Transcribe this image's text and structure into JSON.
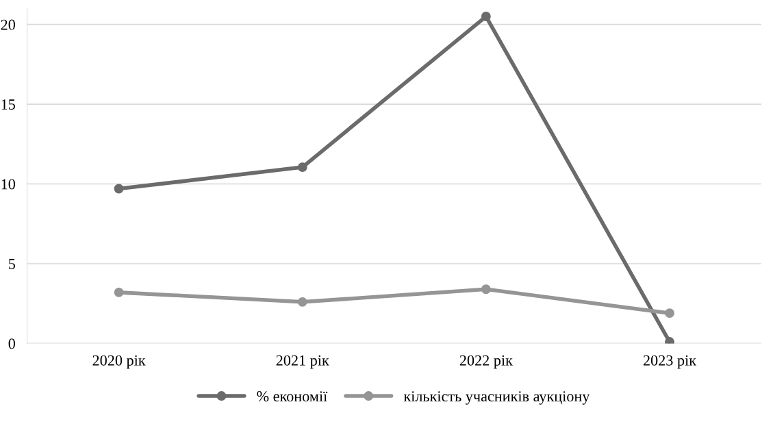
{
  "chart_data": {
    "type": "line",
    "categories": [
      "2020 рік",
      "2021 рік",
      "2022 рік",
      "2023 рік"
    ],
    "series": [
      {
        "name": "% економії",
        "color": "#6b6b6b",
        "values": [
          9.7,
          11.05,
          20.5,
          0.1
        ]
      },
      {
        "name": "кількість учасників аукціону",
        "color": "#959595",
        "values": [
          3.2,
          2.6,
          3.4,
          1.9
        ]
      }
    ],
    "ylim": [
      0,
      21
    ],
    "yticks": [
      0,
      5,
      10,
      15,
      20
    ],
    "grid": "y",
    "legend": "bottom",
    "marker": "circle",
    "line_style": "solid"
  }
}
